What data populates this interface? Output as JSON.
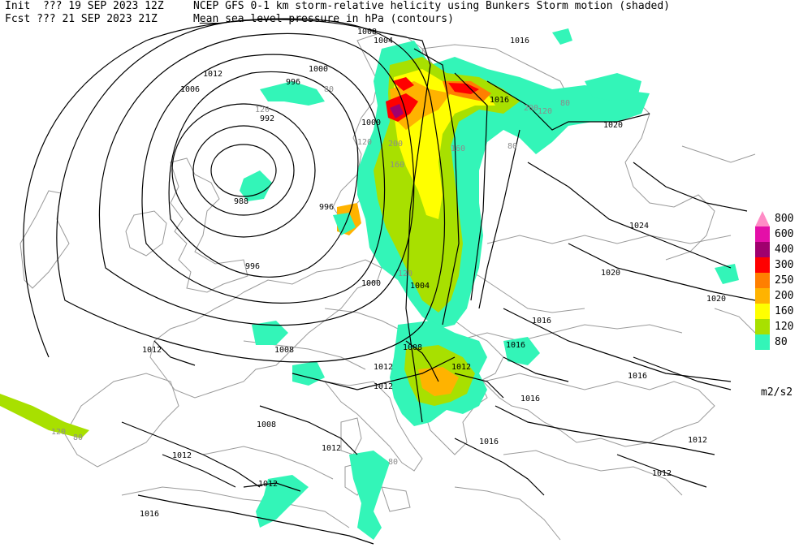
{
  "header": {
    "line1_left": "Init  ??? 19 SEP 2023 12Z",
    "line1_right": "NCEP GFS 0-1 km storm-relative helicity using Bunkers Storm motion (shaded)",
    "line2_left": "Fcst ??? 21 SEP 2023 21Z",
    "line2_right_pre": "M",
    "line2_right_under": "ean",
    "line2_right_post": " sea level pressure in hPa (contours)"
  },
  "legend": {
    "units": "m2/s2",
    "levels": [
      {
        "label": "800",
        "color": "#ff8cc6"
      },
      {
        "label": "600",
        "color": "#e40fa8"
      },
      {
        "label": "400",
        "color": "#a0006e"
      },
      {
        "label": "300",
        "color": "#ff0000"
      },
      {
        "label": "250",
        "color": "#ff7f00"
      },
      {
        "label": "200",
        "color": "#ffb300"
      },
      {
        "label": "160",
        "color": "#ffff00"
      },
      {
        "label": "120",
        "color": "#a8e000"
      },
      {
        "label": "80",
        "color": "#33f5b8"
      }
    ]
  },
  "contour_labels": [
    "1008",
    "1004",
    "1016",
    "1012",
    "1006",
    "996",
    "1000",
    "992",
    "988",
    "996",
    "996",
    "1000",
    "1004",
    "1000",
    "1016",
    "1020",
    "1024",
    "1020",
    "1020",
    "1016",
    "1012",
    "1008",
    "1008",
    "1012",
    "1012",
    "1016",
    "1016",
    "1016",
    "1016",
    "1012",
    "1008",
    "1012",
    "1012",
    "1012",
    "1016",
    "1012",
    "1012"
  ],
  "shade_labels": [
    "120",
    "80",
    "200",
    "160",
    "120",
    "80",
    "200",
    "120",
    "80",
    "160",
    "120",
    "80",
    "120",
    "80"
  ]
}
